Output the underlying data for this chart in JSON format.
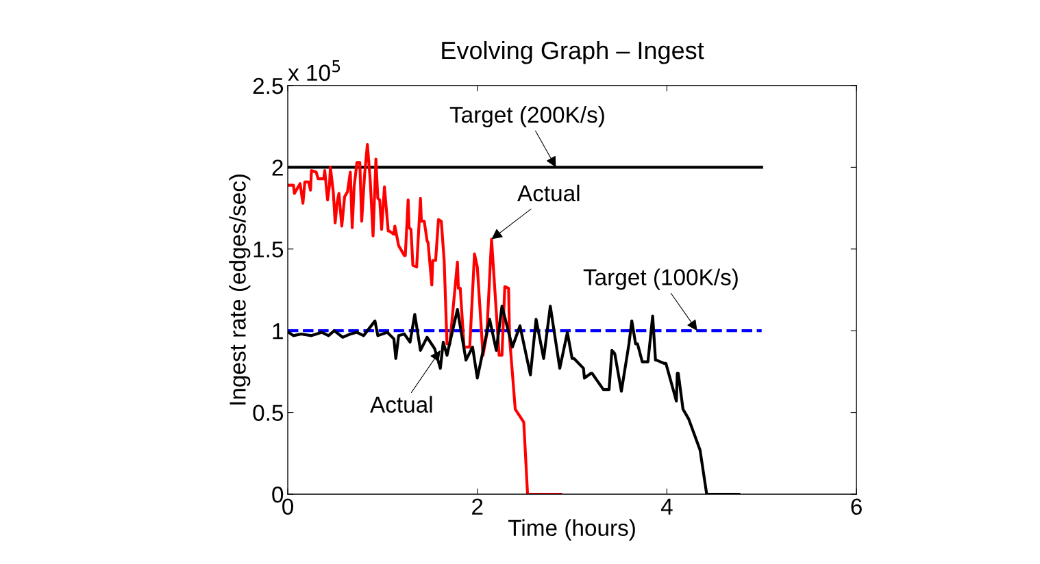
{
  "chart_data": {
    "type": "line",
    "title": "Evolving Graph – Ingest",
    "xlabel": "Time (hours)",
    "ylabel": "Ingest rate (edges/sec)",
    "xlim": [
      0,
      6
    ],
    "xticks": [
      0,
      2,
      4,
      6
    ],
    "ylim": [
      0,
      2.5
    ],
    "yticks": [
      0,
      0.5,
      1,
      1.5,
      2,
      2.5
    ],
    "grid": false,
    "legend": false,
    "marker": "none",
    "series": [
      {
        "color": "#000000",
        "line_style": "solid",
        "x": [
          0,
          5
        ],
        "values": [
          2.0,
          2.0
        ]
      },
      {
        "color": "#0000ff",
        "line_style": "dashed",
        "x": [
          0,
          5
        ],
        "values": [
          1.0,
          1.0
        ]
      },
      {
        "color": "#ff0000",
        "line_style": "solid",
        "x": [
          0.01,
          0.06,
          0.07,
          0.13,
          0.16,
          0.18,
          0.22,
          0.24,
          0.25,
          0.3,
          0.32,
          0.38,
          0.39,
          0.42,
          0.44,
          0.45,
          0.48,
          0.5,
          0.52,
          0.54,
          0.57,
          0.6,
          0.63,
          0.66,
          0.68,
          0.7,
          0.73,
          0.76,
          0.78,
          0.81,
          0.84,
          0.87,
          0.9,
          0.93,
          0.95,
          0.97,
          0.99,
          1.02,
          1.06,
          1.07,
          1.12,
          1.13,
          1.17,
          1.18,
          1.23,
          1.24,
          1.27,
          1.28,
          1.3,
          1.32,
          1.36,
          1.4,
          1.41,
          1.44,
          1.47,
          1.48,
          1.52,
          1.53,
          1.56,
          1.59,
          1.62,
          1.65,
          1.68,
          1.71,
          1.79,
          1.8,
          1.82,
          1.86,
          1.92,
          1.97,
          2.0,
          2.06,
          2.1,
          2.15,
          2.23,
          2.26,
          2.29,
          2.33,
          2.34,
          2.4,
          2.49,
          2.51,
          2.53,
          2.88
        ],
        "values": [
          1.89,
          1.89,
          1.84,
          1.9,
          1.78,
          1.91,
          1.91,
          1.86,
          1.98,
          1.97,
          1.93,
          1.93,
          1.98,
          1.8,
          1.89,
          2.0,
          1.85,
          1.66,
          1.78,
          1.84,
          1.64,
          1.82,
          1.85,
          1.97,
          1.63,
          1.88,
          2.03,
          2.03,
          1.67,
          1.95,
          2.14,
          1.92,
          1.58,
          2.05,
          1.81,
          1.8,
          1.62,
          1.88,
          1.61,
          1.61,
          1.59,
          1.64,
          1.52,
          1.51,
          1.46,
          1.46,
          1.8,
          1.63,
          1.62,
          1.4,
          1.39,
          1.81,
          1.67,
          1.67,
          1.55,
          1.54,
          1.28,
          1.43,
          1.43,
          1.68,
          1.67,
          1.43,
          0.92,
          0.92,
          1.42,
          1.26,
          1.26,
          0.9,
          0.9,
          1.47,
          1.39,
          0.85,
          0.98,
          1.56,
          0.85,
          0.85,
          1.27,
          1.26,
          0.96,
          0.52,
          0.44,
          0.22,
          0,
          0
        ]
      },
      {
        "color": "#000000",
        "line_style": "solid",
        "x": [
          0.01,
          0.06,
          0.14,
          0.25,
          0.36,
          0.43,
          0.49,
          0.58,
          0.66,
          0.73,
          0.8,
          0.92,
          0.95,
          1.05,
          1.12,
          1.14,
          1.17,
          1.23,
          1.29,
          1.34,
          1.4,
          1.47,
          1.55,
          1.61,
          1.64,
          1.68,
          1.79,
          1.88,
          1.95,
          2.0,
          2.13,
          2.2,
          2.26,
          2.37,
          2.45,
          2.56,
          2.62,
          2.7,
          2.77,
          2.87,
          2.95,
          3.0,
          3.02,
          3.12,
          3.13,
          3.2,
          3.21,
          3.33,
          3.39,
          3.42,
          3.45,
          3.52,
          3.6,
          3.63,
          3.67,
          3.69,
          3.74,
          3.8,
          3.85,
          3.88,
          3.89,
          3.97,
          3.99,
          4.1,
          4.11,
          4.12,
          4.17,
          4.23,
          4.35,
          4.35,
          4.42,
          4.76
        ],
        "values": [
          0.99,
          0.97,
          0.98,
          0.97,
          0.99,
          0.97,
          1.0,
          0.96,
          0.98,
          0.99,
          0.97,
          1.06,
          0.97,
          0.99,
          0.95,
          0.83,
          0.97,
          0.98,
          0.93,
          1.1,
          0.88,
          0.96,
          0.89,
          0.77,
          0.93,
          0.85,
          1.13,
          0.82,
          0.9,
          0.71,
          1.07,
          0.88,
          1.15,
          0.9,
          1.03,
          0.73,
          1.07,
          0.83,
          1.15,
          0.77,
          0.99,
          0.83,
          0.83,
          0.77,
          0.71,
          0.74,
          0.74,
          0.64,
          0.64,
          0.88,
          0.86,
          0.63,
          0.92,
          1.06,
          0.92,
          0.92,
          0.81,
          0.81,
          1.09,
          0.82,
          0.82,
          0.8,
          0.8,
          0.57,
          0.74,
          0.74,
          0.52,
          0.46,
          0.27,
          0.27,
          0,
          0
        ]
      }
    ],
    "annotations": [
      "x 10$^{5}$",
      {
        "text": "Target (200K/s)",
        "x": 2.83,
        "y": 2.0
      },
      {
        "text": "Actual",
        "x": 2.15,
        "y": 1.56
      },
      {
        "text": "Target (100K/s)",
        "x": 4.32,
        "y": 1.0
      },
      {
        "text": "Actual",
        "x": 1.61,
        "y": 0.88
      }
    ]
  }
}
